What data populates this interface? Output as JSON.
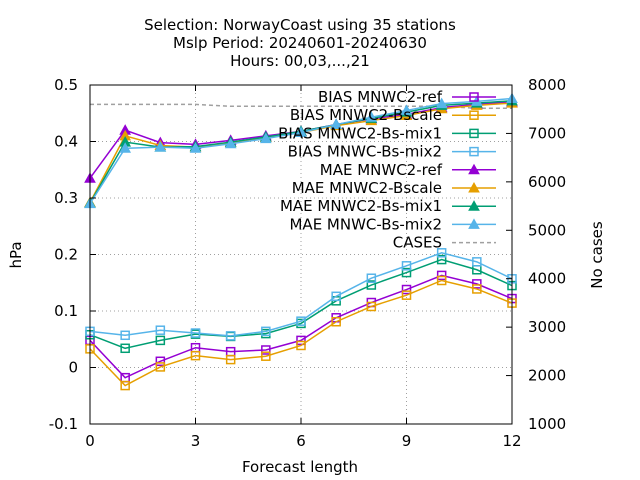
{
  "chart_data": {
    "type": "line",
    "title_lines": [
      "Selection: NorwayCoast using    35 stations",
      "Mslp   Period: 20240601-20240630",
      "Hours: 00,03,...,21"
    ],
    "xlabel": "Forecast length",
    "ylabel": "hPa",
    "y2label": "No cases",
    "xlim": [
      0,
      12
    ],
    "ylim": [
      -0.1,
      0.5
    ],
    "y2lim": [
      1000,
      8000
    ],
    "xticks": [
      0,
      3,
      6,
      9,
      12
    ],
    "yticks": [
      -0.1,
      0,
      0.1,
      0.2,
      0.3,
      0.4,
      0.5
    ],
    "yticklabels": [
      "-0.1",
      "0",
      "0.1",
      "0.2",
      "0.3",
      "0.4",
      "0.5"
    ],
    "y2ticks": [
      1000,
      2000,
      3000,
      4000,
      5000,
      6000,
      7000,
      8000
    ],
    "grid": true,
    "legend_position": "top-right",
    "x": [
      0,
      1,
      2,
      3,
      4,
      5,
      6,
      7,
      8,
      9,
      10,
      11,
      12
    ],
    "series": [
      {
        "name": "BIAS MNWC2-ref",
        "color": "#9400d3",
        "marker": "square-open",
        "axis": "y1",
        "values": [
          0.048,
          -0.018,
          0.011,
          0.035,
          0.028,
          0.031,
          0.048,
          0.088,
          0.115,
          0.138,
          0.163,
          0.148,
          0.122
        ]
      },
      {
        "name": "BIAS MNWC2-Bscale",
        "color": "#e69f00",
        "marker": "square-open",
        "axis": "y1",
        "values": [
          0.033,
          -0.032,
          0.001,
          0.021,
          0.014,
          0.02,
          0.039,
          0.081,
          0.108,
          0.128,
          0.154,
          0.139,
          0.114
        ]
      },
      {
        "name": "BIAS MNWC2-Bs-mix1",
        "color": "#009e73",
        "marker": "square-open",
        "axis": "y1",
        "values": [
          0.058,
          0.034,
          0.048,
          0.059,
          0.055,
          0.06,
          0.078,
          0.118,
          0.146,
          0.168,
          0.191,
          0.173,
          0.145
        ]
      },
      {
        "name": "BIAS MNWC-Bs-mix2",
        "color": "#56b4e9",
        "marker": "square-open",
        "axis": "y1",
        "values": [
          0.064,
          0.057,
          0.066,
          0.061,
          0.056,
          0.064,
          0.082,
          0.126,
          0.158,
          0.18,
          0.203,
          0.187,
          0.157
        ]
      },
      {
        "name": "MAE MNWC2-ref",
        "color": "#9400d3",
        "marker": "triangle-filled",
        "axis": "y1",
        "values": [
          0.335,
          0.42,
          0.398,
          0.395,
          0.402,
          0.41,
          0.418,
          0.43,
          0.44,
          0.448,
          0.46,
          0.466,
          0.47
        ]
      },
      {
        "name": "MAE MNWC2-Bscale",
        "color": "#e69f00",
        "marker": "triangle-filled",
        "axis": "y1",
        "values": [
          0.292,
          0.41,
          0.393,
          0.39,
          0.398,
          0.407,
          0.416,
          0.428,
          0.437,
          0.446,
          0.458,
          0.464,
          0.468
        ]
      },
      {
        "name": "MAE MNWC2-Bs-mix1",
        "color": "#009e73",
        "marker": "triangle-filled",
        "axis": "y1",
        "values": [
          0.291,
          0.399,
          0.39,
          0.391,
          0.399,
          0.408,
          0.418,
          0.43,
          0.441,
          0.452,
          0.464,
          0.468,
          0.472
        ]
      },
      {
        "name": "MAE MNWC-Bs-mix2",
        "color": "#56b4e9",
        "marker": "triangle-filled",
        "axis": "y1",
        "values": [
          0.29,
          0.388,
          0.39,
          0.388,
          0.396,
          0.405,
          0.416,
          0.43,
          0.443,
          0.455,
          0.467,
          0.471,
          0.476
        ]
      },
      {
        "name": "CASES",
        "color": "#a0a0a0",
        "marker": "none",
        "dash": true,
        "axis": "y2",
        "values": [
          7600,
          7600,
          7600,
          7600,
          7560,
          7560,
          7560,
          7560,
          7560,
          7560,
          7560,
          7520,
          7520
        ]
      }
    ]
  }
}
